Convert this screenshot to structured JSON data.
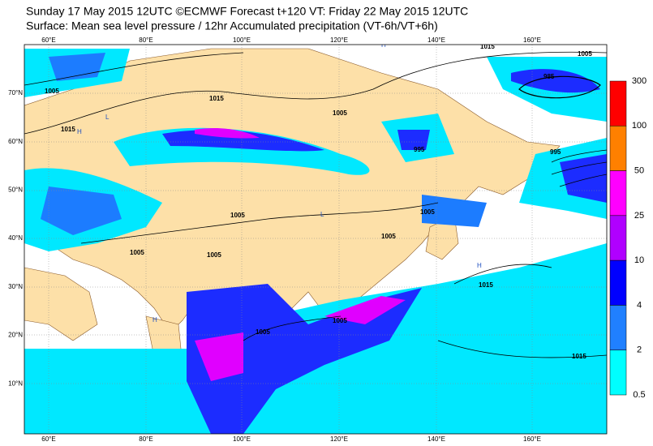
{
  "header": {
    "line1": "Sunday 17 May 2015 12UTC ©ECMWF Forecast t+120 VT: Friday 22 May 2015 12UTC",
    "line2": "Surface: Mean sea level pressure / 12hr Accumulated precipitation (VT-6h/VT+6h)"
  },
  "map": {
    "longitudes": [
      "60°E",
      "80°E",
      "100°E",
      "120°E",
      "140°E",
      "160°E"
    ],
    "latitudes": [
      "70°N",
      "60°N",
      "50°N",
      "40°N",
      "30°N",
      "20°N",
      "10°N"
    ],
    "isobar_labels": [
      "1005",
      "1015",
      "1015",
      "1005",
      "995",
      "985",
      "1005",
      "1015",
      "995",
      "1005",
      "1005",
      "1005",
      "1005",
      "1005",
      "1015",
      "1005",
      "1005",
      "1015"
    ],
    "pressure_centers": [
      "H",
      "L",
      "L",
      "H",
      "H",
      "H"
    ]
  },
  "legend": {
    "levels": [
      300,
      100,
      50,
      25,
      10,
      4,
      2,
      0.5
    ],
    "colors": [
      "#ff0000",
      "#ff8000",
      "#ff00ff",
      "#b000ff",
      "#0000ff",
      "#2080ff",
      "#00ffff"
    ]
  }
}
